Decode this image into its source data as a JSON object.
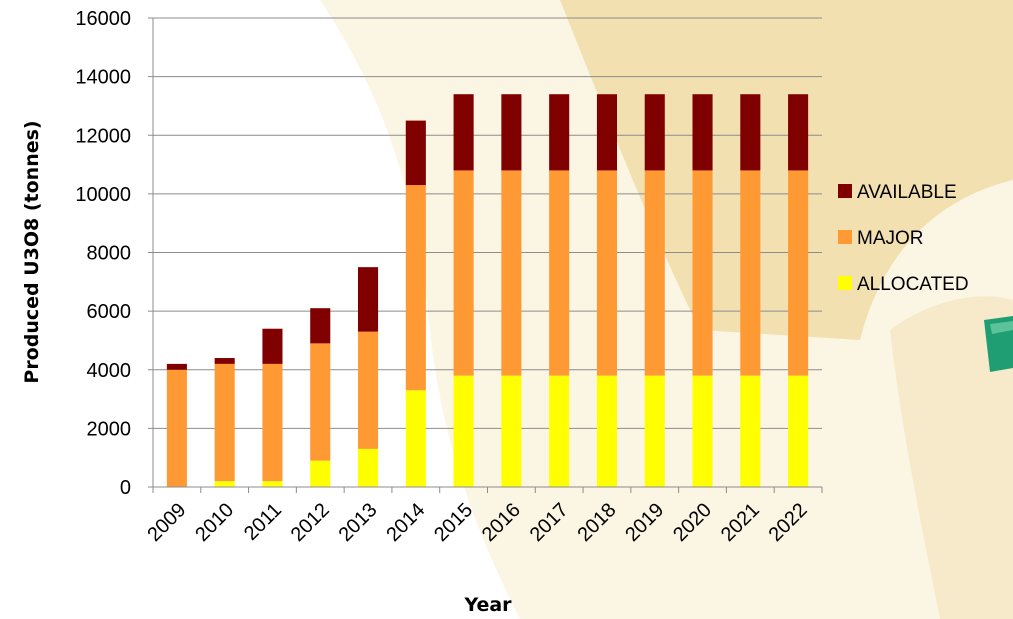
{
  "chart_data": {
    "type": "bar",
    "stacked": true,
    "categories": [
      "2009",
      "2010",
      "2011",
      "2012",
      "2013",
      "2014",
      "2015",
      "2016",
      "2017",
      "2018",
      "2019",
      "2020",
      "2021",
      "2022"
    ],
    "series": [
      {
        "name": "ALLOCATED",
        "color": "#ffff00",
        "values": [
          0,
          200,
          200,
          900,
          1300,
          3300,
          3800,
          3800,
          3800,
          3800,
          3800,
          3800,
          3800,
          3800
        ]
      },
      {
        "name": "MAJOR",
        "color": "#ff9933",
        "values": [
          4000,
          4000,
          4000,
          4000,
          4000,
          7000,
          7000,
          7000,
          7000,
          7000,
          7000,
          7000,
          7000,
          7000
        ]
      },
      {
        "name": "AVAILABLE",
        "color": "#800000",
        "values": [
          200,
          200,
          1200,
          1200,
          2200,
          2200,
          2600,
          2600,
          2600,
          2600,
          2600,
          2600,
          2600,
          2600
        ]
      }
    ],
    "legend_order": [
      "AVAILABLE",
      "MAJOR",
      "ALLOCATED"
    ],
    "yticks": [
      0,
      2000,
      4000,
      6000,
      8000,
      10000,
      12000,
      14000,
      16000
    ],
    "ylim": [
      0,
      16000
    ],
    "xlabel": "Year",
    "ylabel": "Produced U3O8 (tonnes)",
    "grid": true,
    "legend_position": "right"
  }
}
